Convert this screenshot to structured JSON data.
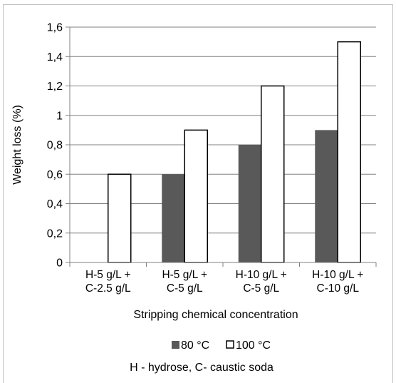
{
  "chart_data": {
    "type": "bar",
    "categories": [
      [
        "H-5 g/L +",
        "C-2.5 g/L"
      ],
      [
        "H-5 g/L +",
        "C-5 g/L"
      ],
      [
        "H-10 g/L +",
        "C-5 g/L"
      ],
      [
        "H-10 g/L +",
        "C-10 g/L"
      ]
    ],
    "series": [
      {
        "name": "80 °C",
        "values": [
          0,
          0.6,
          0.8,
          0.9
        ],
        "color": "#595959"
      },
      {
        "name": "100 °C",
        "values": [
          0.6,
          0.9,
          1.2,
          1.5
        ],
        "color": "#ffffff"
      }
    ],
    "xlabel": "Stripping chemical concentration",
    "ylabel": "Weight loss  (%)",
    "ylim": [
      0,
      1.6
    ],
    "yticks": [
      "0",
      "0,2",
      "0,4",
      "0,6",
      "0,8",
      "1",
      "1,2",
      "1,4",
      "1,6"
    ],
    "grid": true,
    "legend_position": "bottom",
    "footnote": "H - hydrose, C- caustic soda"
  }
}
